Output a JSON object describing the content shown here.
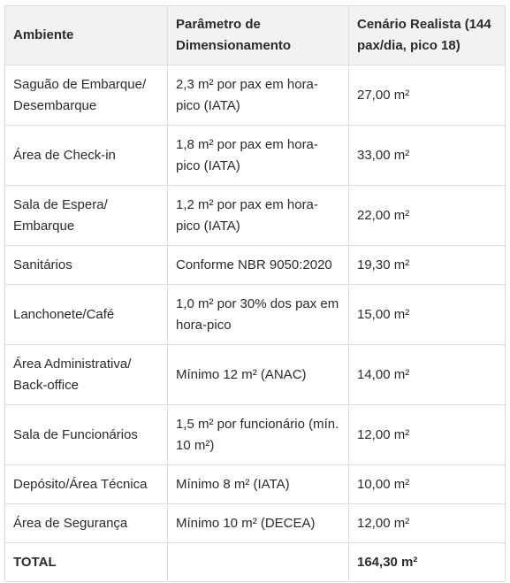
{
  "table": {
    "headers": [
      "Ambiente",
      "Parâmetro de Dimensionamento",
      "Cenário Realista (144 pax/dia, pico 18)"
    ],
    "rows": [
      [
        "Saguão de Embarque/ Desembarque",
        "2,3 m² por pax em hora-pico (IATA)",
        "27,00 m²"
      ],
      [
        "Área de Check-in",
        "1,8 m² por pax em hora-pico (IATA)",
        "33,00 m²"
      ],
      [
        "Sala de Espera/ Embarque",
        "1,2 m² por pax em hora-pico (IATA)",
        "22,00 m²"
      ],
      [
        "Sanitários",
        "Conforme NBR 9050:2020",
        "19,30 m²"
      ],
      [
        "Lanchonete/Café",
        "1,0 m² por 30% dos pax em hora-pico",
        "15,00 m²"
      ],
      [
        "Área Administrativa/ Back-office",
        "Mínimo 12 m² (ANAC)",
        "14,00 m²"
      ],
      [
        "Sala de Funcionários",
        "1,5 m² por funcionário (mín. 10 m²)",
        "12,00 m²"
      ],
      [
        "Depósito/Área Técnica",
        "Mínimo 8 m² (IATA)",
        "10,00 m²"
      ],
      [
        "Área de Segurança",
        "Mínimo 10 m² (DECEA)",
        "12,00 m²"
      ]
    ],
    "total": [
      "TOTAL",
      "",
      "164,30 m²"
    ]
  }
}
